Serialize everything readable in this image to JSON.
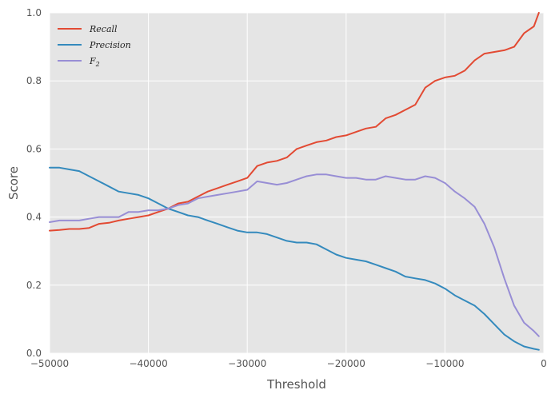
{
  "chart_data": {
    "type": "line",
    "title": "",
    "xlabel": "Threshold",
    "ylabel": "Score",
    "xlim": [
      -50000,
      0
    ],
    "ylim": [
      0.0,
      1.0
    ],
    "xticks": [
      -50000,
      -40000,
      -30000,
      -20000,
      -10000,
      0
    ],
    "xtick_labels": [
      "−50000",
      "−40000",
      "−30000",
      "−20000",
      "−10000",
      "0"
    ],
    "yticks": [
      0.0,
      0.2,
      0.4,
      0.6,
      0.8,
      1.0
    ],
    "ytick_labels": [
      "0.0",
      "0.2",
      "0.4",
      "0.6",
      "0.8",
      "1.0"
    ],
    "grid": true,
    "background": "#e5e5e5",
    "legend_position": "top-left",
    "series": [
      {
        "name": "Recall",
        "color": "#e24a33",
        "x": [
          -50000,
          -49000,
          -48000,
          -47000,
          -46000,
          -45000,
          -44000,
          -43000,
          -42000,
          -41000,
          -40000,
          -39000,
          -38000,
          -37000,
          -36000,
          -35000,
          -34000,
          -33000,
          -32000,
          -31000,
          -30000,
          -29000,
          -28000,
          -27000,
          -26000,
          -25000,
          -24000,
          -23000,
          -22000,
          -21000,
          -20000,
          -19000,
          -18000,
          -17000,
          -16000,
          -15000,
          -14000,
          -13000,
          -12000,
          -11000,
          -10000,
          -9000,
          -8000,
          -7000,
          -6000,
          -5000,
          -4000,
          -3000,
          -2000,
          -1000,
          -500
        ],
        "y": [
          0.36,
          0.362,
          0.365,
          0.365,
          0.368,
          0.38,
          0.383,
          0.39,
          0.395,
          0.4,
          0.405,
          0.415,
          0.425,
          0.44,
          0.445,
          0.46,
          0.475,
          0.485,
          0.495,
          0.505,
          0.515,
          0.55,
          0.56,
          0.565,
          0.575,
          0.6,
          0.61,
          0.62,
          0.625,
          0.635,
          0.64,
          0.65,
          0.66,
          0.665,
          0.69,
          0.7,
          0.715,
          0.73,
          0.78,
          0.8,
          0.81,
          0.815,
          0.83,
          0.86,
          0.88,
          0.885,
          0.89,
          0.9,
          0.94,
          0.96,
          1.0
        ]
      },
      {
        "name": "Precision",
        "color": "#348abd",
        "x": [
          -50000,
          -49000,
          -48000,
          -47000,
          -46000,
          -45000,
          -44000,
          -43000,
          -42000,
          -41000,
          -40000,
          -39000,
          -38000,
          -37000,
          -36000,
          -35000,
          -34000,
          -33000,
          -32000,
          -31000,
          -30000,
          -29000,
          -28000,
          -27000,
          -26000,
          -25000,
          -24000,
          -23000,
          -22000,
          -21000,
          -20000,
          -19000,
          -18000,
          -17000,
          -16000,
          -15000,
          -14000,
          -13000,
          -12000,
          -11000,
          -10000,
          -9000,
          -8000,
          -7000,
          -6000,
          -5000,
          -4000,
          -3000,
          -2000,
          -1000,
          -500
        ],
        "y": [
          0.545,
          0.545,
          0.54,
          0.535,
          0.52,
          0.505,
          0.49,
          0.475,
          0.47,
          0.465,
          0.455,
          0.44,
          0.425,
          0.415,
          0.405,
          0.4,
          0.39,
          0.38,
          0.37,
          0.36,
          0.355,
          0.355,
          0.35,
          0.34,
          0.33,
          0.325,
          0.325,
          0.32,
          0.305,
          0.29,
          0.28,
          0.275,
          0.27,
          0.26,
          0.25,
          0.24,
          0.225,
          0.22,
          0.215,
          0.205,
          0.19,
          0.17,
          0.155,
          0.14,
          0.115,
          0.085,
          0.055,
          0.035,
          0.02,
          0.013,
          0.01
        ]
      },
      {
        "name": "F2",
        "color": "#988ed5",
        "x": [
          -50000,
          -49000,
          -48000,
          -47000,
          -46000,
          -45000,
          -44000,
          -43000,
          -42000,
          -41000,
          -40000,
          -39000,
          -38000,
          -37000,
          -36000,
          -35000,
          -34000,
          -33000,
          -32000,
          -31000,
          -30000,
          -29000,
          -28000,
          -27000,
          -26000,
          -25000,
          -24000,
          -23000,
          -22000,
          -21000,
          -20000,
          -19000,
          -18000,
          -17000,
          -16000,
          -15000,
          -14000,
          -13000,
          -12000,
          -11000,
          -10000,
          -9000,
          -8000,
          -7000,
          -6000,
          -5000,
          -4000,
          -3000,
          -2000,
          -1000,
          -500
        ],
        "y": [
          0.385,
          0.39,
          0.39,
          0.39,
          0.395,
          0.4,
          0.4,
          0.4,
          0.415,
          0.415,
          0.42,
          0.42,
          0.425,
          0.435,
          0.44,
          0.455,
          0.46,
          0.465,
          0.47,
          0.475,
          0.48,
          0.505,
          0.5,
          0.495,
          0.5,
          0.51,
          0.52,
          0.525,
          0.525,
          0.52,
          0.515,
          0.515,
          0.51,
          0.51,
          0.52,
          0.515,
          0.51,
          0.51,
          0.52,
          0.515,
          0.5,
          0.475,
          0.455,
          0.43,
          0.38,
          0.31,
          0.22,
          0.14,
          0.09,
          0.065,
          0.05
        ]
      }
    ]
  },
  "legend": {
    "items": [
      {
        "base": "Recall",
        "sub": ""
      },
      {
        "base": "Precision",
        "sub": ""
      },
      {
        "base": "F",
        "sub": "2"
      }
    ]
  }
}
